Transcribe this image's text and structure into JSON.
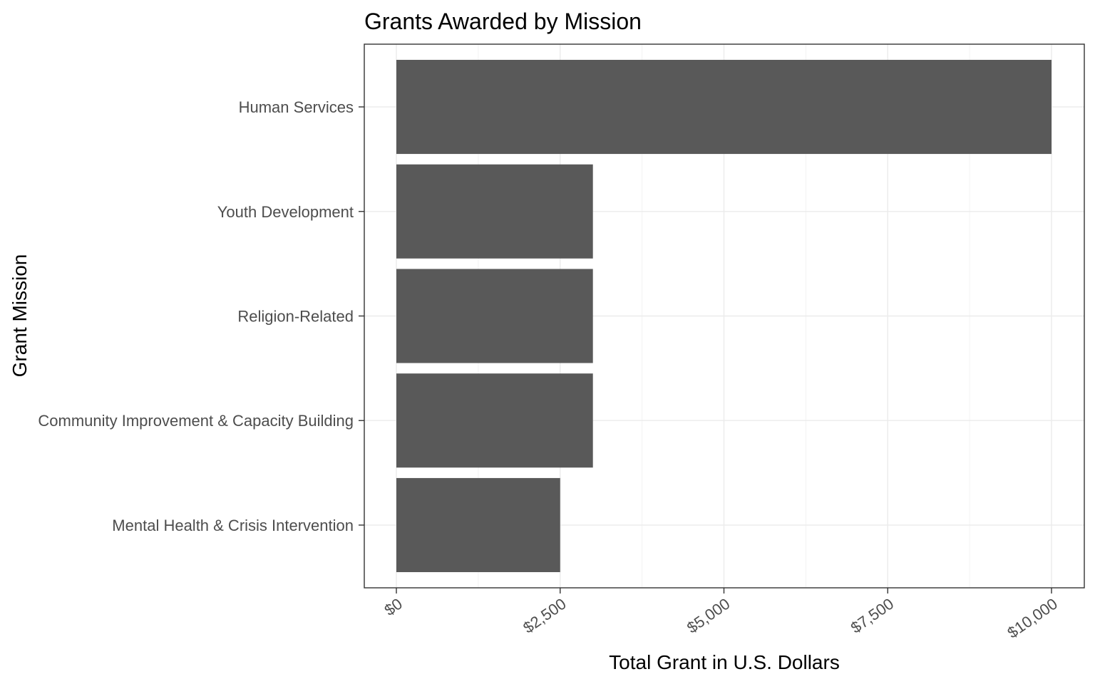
{
  "chart_data": {
    "type": "bar",
    "orientation": "horizontal",
    "title": "Grants Awarded by Mission",
    "xlabel": "Total Grant in U.S. Dollars",
    "ylabel": "Grant Mission",
    "categories": [
      "Human Services",
      "Youth Development",
      "Religion-Related",
      "Community Improvement & Capacity Building",
      "Mental Health & Crisis Intervention"
    ],
    "values": [
      10000,
      3000,
      3000,
      3000,
      2500
    ],
    "xlim": [
      0,
      10500
    ],
    "x_ticks": [
      0,
      2500,
      5000,
      7500,
      10000
    ],
    "x_tick_labels": [
      "$0",
      "$2,500",
      "$5,000",
      "$7,500",
      "$10,000"
    ],
    "grid": true,
    "legend": "none",
    "bar_color": "#595959"
  }
}
